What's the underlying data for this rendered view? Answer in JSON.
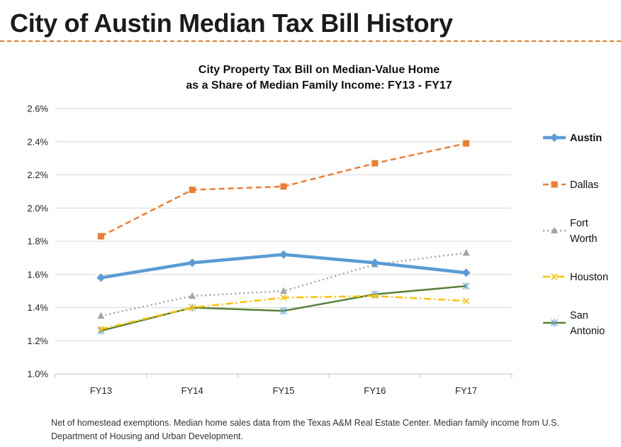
{
  "slide": {
    "title": "City of Austin Median Tax Bill History",
    "footnote": "Net of homestead exemptions. Median home sales data from the Texas A&M Real Estate Center. Median family income from U.S. Department of Housing and Urban Development."
  },
  "chart_data": {
    "type": "line",
    "title_line1": "City Property Tax Bill on Median-Value Home",
    "title_line2": "as a Share of Median Family Income: FY13 - FY17",
    "categories": [
      "FY13",
      "FY14",
      "FY15",
      "FY16",
      "FY17"
    ],
    "ylim": [
      1.0,
      2.6
    ],
    "yticks": [
      1.0,
      1.2,
      1.4,
      1.6,
      1.8,
      2.0,
      2.2,
      2.4,
      2.6
    ],
    "ytick_labels": [
      "1.0%",
      "1.2%",
      "1.4%",
      "1.6%",
      "1.8%",
      "2.0%",
      "2.2%",
      "2.4%",
      "2.6%"
    ],
    "grid": true,
    "legend_position": "right",
    "series": [
      {
        "name": "Austin",
        "label_lines": [
          "Austin"
        ],
        "values": [
          1.58,
          1.67,
          1.72,
          1.67,
          1.61
        ],
        "color": "#5b9bd5",
        "style": "solid-thick",
        "marker": "diamond",
        "bold_label": true
      },
      {
        "name": "Dallas",
        "label_lines": [
          "Dallas"
        ],
        "values": [
          1.83,
          2.11,
          2.13,
          2.27,
          2.39
        ],
        "color": "#ed7d31",
        "style": "dash",
        "marker": "square",
        "bold_label": false
      },
      {
        "name": "Fort Worth",
        "label_lines": [
          "Fort",
          "Worth"
        ],
        "values": [
          1.35,
          1.47,
          1.5,
          1.66,
          1.73
        ],
        "color": "#a5a5a5",
        "style": "dot",
        "marker": "triangle",
        "bold_label": false
      },
      {
        "name": "Houston",
        "label_lines": [
          "Houston"
        ],
        "values": [
          1.27,
          1.4,
          1.46,
          1.47,
          1.44
        ],
        "color": "#ffc000",
        "style": "dashdot",
        "marker": "x",
        "bold_label": false
      },
      {
        "name": "San Antonio",
        "label_lines": [
          "San",
          "Antonio"
        ],
        "values": [
          1.26,
          1.4,
          1.38,
          1.48,
          1.53
        ],
        "color": "#548235",
        "style": "solid",
        "marker": "star",
        "bold_label": false
      }
    ]
  }
}
